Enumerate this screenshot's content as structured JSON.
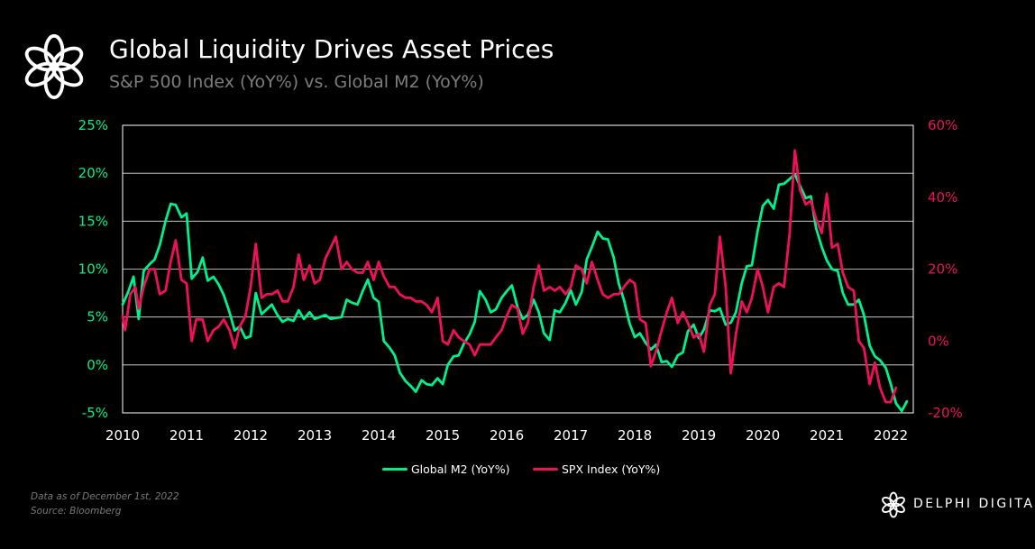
{
  "header": {
    "title": "Global Liquidity Drives Asset Prices",
    "subtitle": "S&P 500 Index (YoY%) vs. Global M2 (YoY%)"
  },
  "footer": {
    "note_date": "Data as of December  1st, 2022",
    "note_source": "Source: Bloomberg",
    "brand": "DELPHI DIGITAL"
  },
  "colors": {
    "background": "#000000",
    "m2": "#00f08c",
    "spx": "#f0105a",
    "grid": "#ffffff"
  },
  "chart_data": {
    "type": "line",
    "title": "Global Liquidity Drives Asset Prices",
    "subtitle": "S&P 500 Index (YoY%) vs. Global M2 (YoY%)",
    "x_ticks": [
      "2010",
      "2011",
      "2012",
      "2013",
      "2014",
      "2015",
      "2016",
      "2017",
      "2018",
      "2019",
      "2020",
      "2021",
      "2022"
    ],
    "xlim": [
      2010.0,
      2022.35
    ],
    "y_left": {
      "lim": [
        -5,
        25
      ],
      "ticks": [
        "-5%",
        "0%",
        "5%",
        "10%",
        "15%",
        "20%",
        "25%"
      ],
      "color": "#00f08c"
    },
    "y_right": {
      "lim": [
        -20,
        60
      ],
      "ticks": [
        "-20%",
        "0%",
        "20%",
        "40%",
        "60%"
      ],
      "color": "#f0105a"
    },
    "grid": "horizontal",
    "legend_position": "bottom-center",
    "series": [
      {
        "name": "Global M2 (YoY%)",
        "axis": "left",
        "color": "#00f08c",
        "points": [
          [
            2010.0,
            6.3
          ],
          [
            2010.08,
            7.5
          ],
          [
            2010.17,
            9.2
          ],
          [
            2010.25,
            4.8
          ],
          [
            2010.33,
            9.8
          ],
          [
            2010.42,
            10.5
          ],
          [
            2010.5,
            11.0
          ],
          [
            2010.58,
            12.5
          ],
          [
            2010.67,
            15.0
          ],
          [
            2010.75,
            16.8
          ],
          [
            2010.83,
            16.7
          ],
          [
            2010.92,
            15.4
          ],
          [
            2011.0,
            15.8
          ],
          [
            2011.08,
            9.0
          ],
          [
            2011.17,
            9.7
          ],
          [
            2011.25,
            11.2
          ],
          [
            2011.33,
            8.8
          ],
          [
            2011.42,
            9.2
          ],
          [
            2011.5,
            8.4
          ],
          [
            2011.58,
            7.3
          ],
          [
            2011.67,
            5.5
          ],
          [
            2011.75,
            3.6
          ],
          [
            2011.83,
            4.0
          ],
          [
            2011.92,
            2.8
          ],
          [
            2012.0,
            3.0
          ],
          [
            2012.08,
            7.5
          ],
          [
            2012.17,
            5.3
          ],
          [
            2012.25,
            5.8
          ],
          [
            2012.33,
            6.3
          ],
          [
            2012.42,
            5.2
          ],
          [
            2012.5,
            4.5
          ],
          [
            2012.58,
            4.8
          ],
          [
            2012.67,
            4.6
          ],
          [
            2012.75,
            5.7
          ],
          [
            2012.83,
            4.8
          ],
          [
            2012.92,
            5.5
          ],
          [
            2013.0,
            4.8
          ],
          [
            2013.08,
            5.0
          ],
          [
            2013.17,
            5.2
          ],
          [
            2013.25,
            4.8
          ],
          [
            2013.33,
            4.9
          ],
          [
            2013.42,
            5.0
          ],
          [
            2013.5,
            6.8
          ],
          [
            2013.58,
            6.5
          ],
          [
            2013.67,
            6.3
          ],
          [
            2013.75,
            7.7
          ],
          [
            2013.83,
            8.9
          ],
          [
            2013.92,
            7.0
          ],
          [
            2014.0,
            6.6
          ],
          [
            2014.08,
            2.5
          ],
          [
            2014.17,
            1.8
          ],
          [
            2014.25,
            1.0
          ],
          [
            2014.33,
            -0.8
          ],
          [
            2014.42,
            -1.7
          ],
          [
            2014.5,
            -2.2
          ],
          [
            2014.58,
            -2.8
          ],
          [
            2014.67,
            -1.6
          ],
          [
            2014.75,
            -2.0
          ],
          [
            2014.83,
            -2.1
          ],
          [
            2014.92,
            -1.4
          ],
          [
            2015.0,
            -2.0
          ],
          [
            2015.08,
            0.0
          ],
          [
            2015.17,
            0.9
          ],
          [
            2015.25,
            1.0
          ],
          [
            2015.33,
            2.2
          ],
          [
            2015.42,
            3.2
          ],
          [
            2015.5,
            4.5
          ],
          [
            2015.58,
            7.7
          ],
          [
            2015.67,
            6.8
          ],
          [
            2015.75,
            5.5
          ],
          [
            2015.83,
            5.8
          ],
          [
            2015.92,
            7.0
          ],
          [
            2016.0,
            7.7
          ],
          [
            2016.08,
            8.3
          ],
          [
            2016.17,
            6.0
          ],
          [
            2016.25,
            4.8
          ],
          [
            2016.33,
            5.2
          ],
          [
            2016.42,
            6.8
          ],
          [
            2016.5,
            5.5
          ],
          [
            2016.58,
            3.3
          ],
          [
            2016.67,
            2.6
          ],
          [
            2016.75,
            5.7
          ],
          [
            2016.83,
            5.5
          ],
          [
            2016.92,
            6.5
          ],
          [
            2017.0,
            7.8
          ],
          [
            2017.08,
            6.3
          ],
          [
            2017.17,
            7.6
          ],
          [
            2017.25,
            11.0
          ],
          [
            2017.33,
            12.3
          ],
          [
            2017.42,
            13.9
          ],
          [
            2017.5,
            13.2
          ],
          [
            2017.58,
            13.1
          ],
          [
            2017.67,
            11.2
          ],
          [
            2017.75,
            8.5
          ],
          [
            2017.83,
            6.8
          ],
          [
            2017.92,
            4.3
          ],
          [
            2018.0,
            2.9
          ],
          [
            2018.08,
            3.3
          ],
          [
            2018.17,
            2.3
          ],
          [
            2018.25,
            1.6
          ],
          [
            2018.33,
            2.1
          ],
          [
            2018.42,
            0.3
          ],
          [
            2018.5,
            0.4
          ],
          [
            2018.58,
            -0.2
          ],
          [
            2018.67,
            1.0
          ],
          [
            2018.75,
            1.3
          ],
          [
            2018.83,
            3.5
          ],
          [
            2018.92,
            4.2
          ],
          [
            2019.0,
            2.8
          ],
          [
            2019.08,
            3.7
          ],
          [
            2019.17,
            5.7
          ],
          [
            2019.25,
            5.6
          ],
          [
            2019.33,
            5.9
          ],
          [
            2019.42,
            4.2
          ],
          [
            2019.5,
            4.4
          ],
          [
            2019.58,
            5.5
          ],
          [
            2019.67,
            8.5
          ],
          [
            2019.75,
            10.3
          ],
          [
            2019.83,
            10.4
          ],
          [
            2019.92,
            14.0
          ],
          [
            2020.0,
            16.6
          ],
          [
            2020.08,
            17.2
          ],
          [
            2020.17,
            16.3
          ],
          [
            2020.25,
            18.8
          ],
          [
            2020.33,
            18.9
          ],
          [
            2020.42,
            19.4
          ],
          [
            2020.5,
            19.9
          ],
          [
            2020.58,
            18.7
          ],
          [
            2020.67,
            17.4
          ],
          [
            2020.75,
            17.6
          ],
          [
            2020.83,
            14.3
          ],
          [
            2020.92,
            12.3
          ],
          [
            2021.0,
            10.9
          ],
          [
            2021.08,
            10.0
          ],
          [
            2021.17,
            9.8
          ],
          [
            2021.25,
            7.5
          ],
          [
            2021.33,
            6.3
          ],
          [
            2021.42,
            6.3
          ],
          [
            2021.5,
            6.8
          ],
          [
            2021.58,
            5.2
          ],
          [
            2021.67,
            2.0
          ],
          [
            2021.75,
            0.9
          ],
          [
            2021.83,
            0.5
          ],
          [
            2021.92,
            -0.3
          ],
          [
            2022.0,
            -2.0
          ],
          [
            2022.08,
            -4.0
          ],
          [
            2022.17,
            -4.8
          ],
          [
            2022.25,
            -3.8
          ]
        ]
      },
      {
        "name": "SPX Index (YoY%)",
        "axis": "right",
        "color": "#f0105a",
        "points": [
          [
            2010.0,
            7
          ],
          [
            2010.04,
            3
          ],
          [
            2010.12,
            13
          ],
          [
            2010.2,
            15
          ],
          [
            2010.25,
            9
          ],
          [
            2010.33,
            15
          ],
          [
            2010.42,
            20
          ],
          [
            2010.5,
            20
          ],
          [
            2010.58,
            13
          ],
          [
            2010.67,
            14
          ],
          [
            2010.75,
            22
          ],
          [
            2010.83,
            28
          ],
          [
            2010.92,
            17
          ],
          [
            2011.0,
            16
          ],
          [
            2011.08,
            0
          ],
          [
            2011.15,
            6
          ],
          [
            2011.25,
            6
          ],
          [
            2011.33,
            0
          ],
          [
            2011.42,
            3
          ],
          [
            2011.5,
            4
          ],
          [
            2011.58,
            6
          ],
          [
            2011.67,
            3
          ],
          [
            2011.75,
            -2
          ],
          [
            2011.83,
            4
          ],
          [
            2011.92,
            7
          ],
          [
            2012.0,
            15
          ],
          [
            2012.08,
            27
          ],
          [
            2012.17,
            12
          ],
          [
            2012.25,
            13
          ],
          [
            2012.33,
            13
          ],
          [
            2012.42,
            14
          ],
          [
            2012.5,
            11
          ],
          [
            2012.58,
            11
          ],
          [
            2012.67,
            15
          ],
          [
            2012.75,
            24
          ],
          [
            2012.83,
            17
          ],
          [
            2012.92,
            21
          ],
          [
            2013.0,
            16
          ],
          [
            2013.08,
            17
          ],
          [
            2013.17,
            23
          ],
          [
            2013.25,
            26
          ],
          [
            2013.33,
            29
          ],
          [
            2013.42,
            20
          ],
          [
            2013.5,
            22
          ],
          [
            2013.58,
            20
          ],
          [
            2013.67,
            19
          ],
          [
            2013.75,
            19
          ],
          [
            2013.83,
            22
          ],
          [
            2013.92,
            17
          ],
          [
            2014.0,
            22
          ],
          [
            2014.08,
            18
          ],
          [
            2014.17,
            15
          ],
          [
            2014.25,
            15
          ],
          [
            2014.33,
            13
          ],
          [
            2014.42,
            12
          ],
          [
            2014.5,
            12
          ],
          [
            2014.58,
            11
          ],
          [
            2014.67,
            11
          ],
          [
            2014.75,
            10
          ],
          [
            2014.83,
            8
          ],
          [
            2014.92,
            12
          ],
          [
            2015.0,
            0
          ],
          [
            2015.08,
            -1
          ],
          [
            2015.17,
            3
          ],
          [
            2015.25,
            1
          ],
          [
            2015.33,
            0
          ],
          [
            2015.42,
            -1
          ],
          [
            2015.5,
            -4
          ],
          [
            2015.58,
            -1
          ],
          [
            2015.67,
            -1
          ],
          [
            2015.75,
            -1
          ],
          [
            2015.83,
            1
          ],
          [
            2015.92,
            3
          ],
          [
            2016.0,
            7
          ],
          [
            2016.08,
            10
          ],
          [
            2016.17,
            9
          ],
          [
            2016.25,
            2
          ],
          [
            2016.33,
            5
          ],
          [
            2016.42,
            15
          ],
          [
            2016.5,
            21
          ],
          [
            2016.58,
            14
          ],
          [
            2016.67,
            15
          ],
          [
            2016.75,
            14
          ],
          [
            2016.83,
            15
          ],
          [
            2016.92,
            13
          ],
          [
            2017.0,
            15
          ],
          [
            2017.08,
            21
          ],
          [
            2017.17,
            20
          ],
          [
            2017.25,
            16
          ],
          [
            2017.33,
            22
          ],
          [
            2017.42,
            17
          ],
          [
            2017.5,
            13
          ],
          [
            2017.58,
            12
          ],
          [
            2017.67,
            13
          ],
          [
            2017.75,
            13
          ],
          [
            2017.83,
            15
          ],
          [
            2017.92,
            17
          ],
          [
            2018.0,
            16
          ],
          [
            2018.08,
            6
          ],
          [
            2018.17,
            5
          ],
          [
            2018.25,
            -7
          ],
          [
            2018.33,
            -3
          ],
          [
            2018.42,
            3
          ],
          [
            2018.5,
            8
          ],
          [
            2018.58,
            12
          ],
          [
            2018.67,
            5
          ],
          [
            2018.75,
            8
          ],
          [
            2018.83,
            5
          ],
          [
            2018.92,
            1
          ],
          [
            2019.0,
            2
          ],
          [
            2019.08,
            -3
          ],
          [
            2019.17,
            10
          ],
          [
            2019.25,
            13
          ],
          [
            2019.33,
            29
          ],
          [
            2019.42,
            15
          ],
          [
            2019.5,
            -9
          ],
          [
            2019.58,
            2
          ],
          [
            2019.67,
            11
          ],
          [
            2019.75,
            8
          ],
          [
            2019.83,
            12
          ],
          [
            2019.92,
            20
          ],
          [
            2020.0,
            15
          ],
          [
            2020.08,
            8
          ],
          [
            2020.17,
            15
          ],
          [
            2020.25,
            16
          ],
          [
            2020.33,
            15
          ],
          [
            2020.42,
            30
          ],
          [
            2020.5,
            53
          ],
          [
            2020.58,
            42
          ],
          [
            2020.67,
            38
          ],
          [
            2020.75,
            39
          ],
          [
            2020.83,
            34
          ],
          [
            2020.92,
            30
          ],
          [
            2021.0,
            41
          ],
          [
            2021.08,
            26
          ],
          [
            2021.17,
            27
          ],
          [
            2021.25,
            19
          ],
          [
            2021.33,
            15
          ],
          [
            2021.42,
            14
          ],
          [
            2021.5,
            0
          ],
          [
            2021.58,
            -2
          ],
          [
            2021.67,
            -12
          ],
          [
            2021.75,
            -6
          ],
          [
            2021.83,
            -13
          ],
          [
            2021.92,
            -17
          ],
          [
            2022.0,
            -17
          ],
          [
            2022.08,
            -13
          ]
        ]
      }
    ]
  }
}
